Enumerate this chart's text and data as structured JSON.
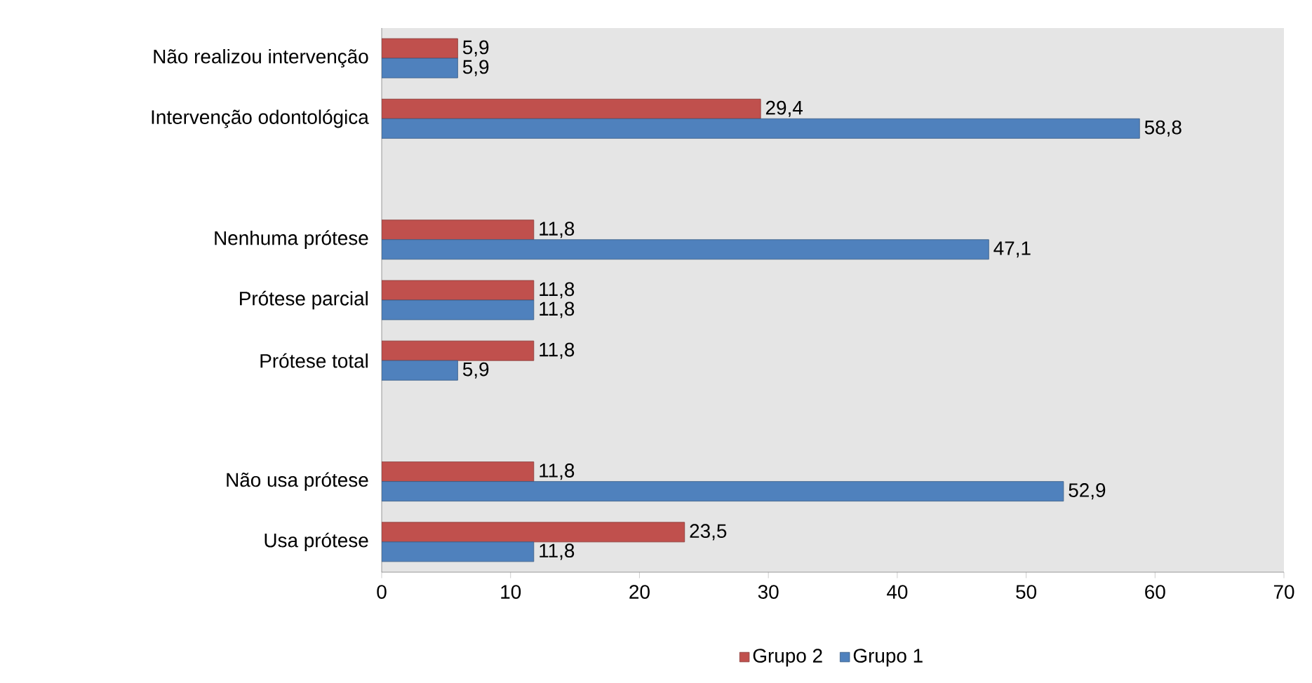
{
  "chart_data": {
    "type": "bar",
    "orientation": "horizontal",
    "categories": [
      "Não realizou intervenção",
      "Intervenção odontológica",
      null,
      "Nenhuma prótese",
      "Prótese parcial",
      "Prótese total",
      null,
      "Não usa prótese",
      "Usa prótese"
    ],
    "series": [
      {
        "name": "Grupo 2",
        "color": "#c0504d",
        "values": [
          5.9,
          29.4,
          null,
          11.8,
          11.8,
          11.8,
          null,
          11.8,
          23.5
        ],
        "value_labels": [
          "5,9",
          "29,4",
          null,
          "11,8",
          "11,8",
          "11,8",
          null,
          "11,8",
          "23,5"
        ]
      },
      {
        "name": "Grupo 1",
        "color": "#4f81bd",
        "values": [
          5.9,
          58.8,
          null,
          47.1,
          11.8,
          5.9,
          null,
          52.9,
          11.8
        ],
        "value_labels": [
          "5,9",
          "58,8",
          null,
          "47,1",
          "11,8",
          "5,9",
          null,
          "52,9",
          "11,8"
        ]
      }
    ],
    "xlim": [
      0,
      70
    ],
    "xticks": [
      0,
      10,
      20,
      30,
      40,
      50,
      60,
      70
    ],
    "legend": "bottom"
  }
}
